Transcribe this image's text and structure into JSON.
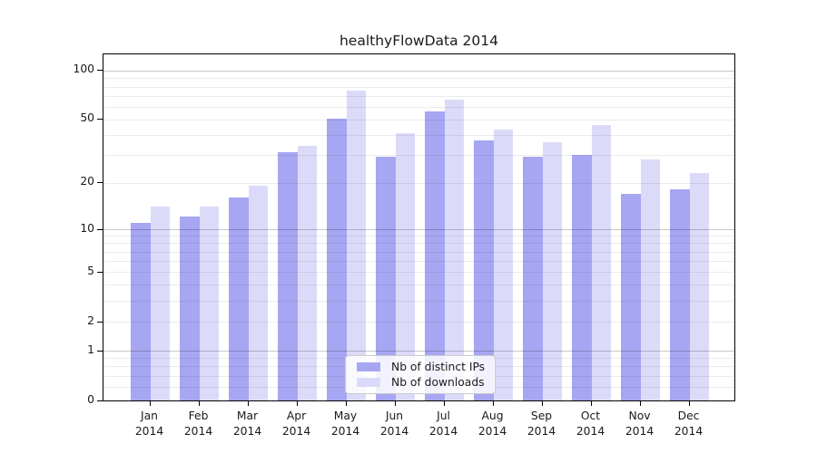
{
  "chart_data": {
    "type": "bar",
    "title": "healthyFlowData 2014",
    "x_months": [
      "Jan",
      "Feb",
      "Mar",
      "Apr",
      "May",
      "Jun",
      "Jul",
      "Aug",
      "Sep",
      "Oct",
      "Nov",
      "Dec"
    ],
    "x_year": "2014",
    "series": [
      {
        "name": "Nb of distinct IPs",
        "color": "#a6a6f3",
        "values": [
          11,
          12,
          16,
          31,
          50,
          29,
          56,
          37,
          29,
          30,
          17,
          18
        ]
      },
      {
        "name": "Nb of downloads",
        "color": "#dbdbf9",
        "values": [
          14,
          14,
          19,
          34,
          75,
          41,
          66,
          43,
          36,
          46,
          28,
          23
        ]
      }
    ],
    "y_ticks": [
      0,
      1,
      2,
      5,
      10,
      20,
      50,
      100
    ],
    "y_major_gridlines": [
      1,
      10,
      100
    ],
    "y_minor_gridlines": [
      0.2,
      0.4,
      0.6,
      0.8,
      2,
      3,
      4,
      5,
      6,
      7,
      8,
      9,
      20,
      30,
      40,
      50,
      60,
      70,
      80,
      90
    ],
    "y_scale": "log1p",
    "ylim": [
      0,
      128
    ],
    "grid": "both",
    "legend_position": "lower center",
    "colors": {
      "axis": "#000000",
      "major_grid": "#c9c9c9",
      "minor_grid": "#ececec",
      "legend_border": "#cccccc",
      "text": "#1a1a1a"
    }
  }
}
